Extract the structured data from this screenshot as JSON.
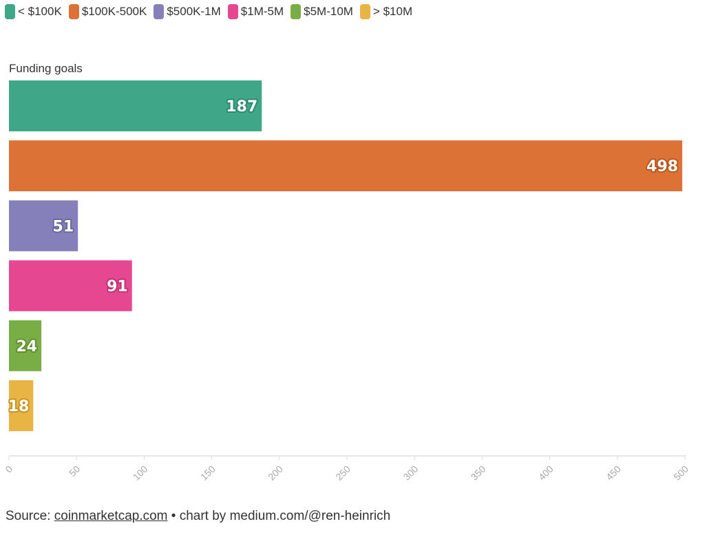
{
  "chart_data": {
    "type": "bar",
    "orientation": "horizontal",
    "title": "",
    "ylabel": "Funding goals",
    "xlabel": "",
    "categories": [
      "< $100K",
      "$100K-500K",
      "$500K-1M",
      "$1M-5M",
      "$5M-10M",
      "> $10M"
    ],
    "values": [
      187,
      498,
      51,
      91,
      24,
      18
    ],
    "colors": [
      "#3fa687",
      "#dc7236",
      "#8580b9",
      "#e54891",
      "#78ae45",
      "#e8b444"
    ],
    "label_stroke_colors": [
      "#2f8a6e",
      "#b9571f",
      "#6d67a0",
      "#c2306f",
      "#5e9030",
      "#c9941f"
    ],
    "xlim": [
      0,
      500
    ],
    "ticks": [
      "0",
      "50",
      "100",
      "150",
      "200",
      "250",
      "300",
      "350",
      "400",
      "450",
      "500"
    ],
    "tick_values": [
      0,
      50,
      100,
      150,
      200,
      250,
      300,
      350,
      400,
      450,
      500
    ],
    "legend": {
      "placement": "top-left",
      "entries": [
        "< $100K",
        "$100K-500K",
        "$500K-1M",
        "$1M-5M",
        "$5M-10M",
        "> $10M"
      ]
    },
    "grid": false
  },
  "footer": {
    "prefix": "Source: ",
    "source_link": "coinmarketcap.com",
    "suffix": " • chart by medium.com/@ren-heinrich"
  }
}
